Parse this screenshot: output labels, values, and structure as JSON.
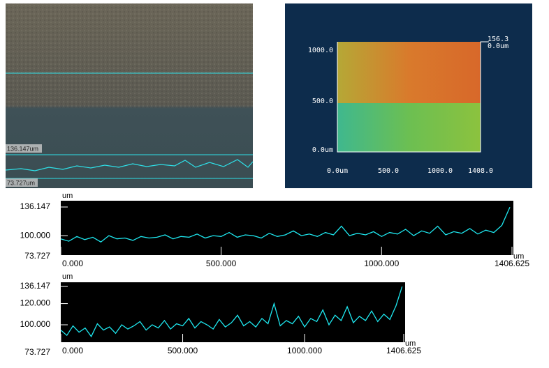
{
  "micrograph": {
    "upper_label": "136.147um",
    "lower_label": "73.727um"
  },
  "height_map": {
    "scale_max": "156.3",
    "scale_min": "0.0um",
    "y_tick_labels": [
      "1000.0",
      "500.0",
      "0.0um"
    ],
    "x_tick_labels": [
      "0.0um",
      "500.0",
      "1000.0",
      "1408.0"
    ]
  },
  "chart_data": [
    {
      "type": "line",
      "y_label": "um",
      "x_label": "um",
      "xlim": [
        0,
        1406.625
      ],
      "xticks": [
        {
          "value": 0,
          "label": "0.000"
        },
        {
          "value": 500,
          "label": "500.000"
        },
        {
          "value": 1000,
          "label": "1000.000"
        },
        1406.625
      ],
      "ylim": [
        73.727,
        136.147
      ],
      "yticks": [
        136.147,
        {
          "value": 100,
          "label": "100.000"
        },
        73.727
      ],
      "x": [
        0,
        25,
        50,
        75,
        100,
        125,
        150,
        175,
        200,
        225,
        250,
        275,
        300,
        325,
        350,
        375,
        400,
        425,
        450,
        475,
        500,
        525,
        550,
        575,
        600,
        625,
        650,
        675,
        700,
        725,
        750,
        775,
        800,
        825,
        850,
        875,
        900,
        925,
        950,
        975,
        1000,
        1025,
        1050,
        1075,
        1100,
        1125,
        1150,
        1175,
        1200,
        1225,
        1250,
        1275,
        1300,
        1325,
        1350,
        1375,
        1400
      ],
      "series": [
        {
          "color": "#1ee8f0",
          "values": [
            96,
            93,
            99,
            95,
            98,
            92,
            100,
            96,
            97,
            94,
            99,
            97,
            98,
            101,
            96,
            99,
            98,
            102,
            97,
            100,
            99,
            104,
            98,
            101,
            100,
            97,
            103,
            99,
            101,
            106,
            100,
            102,
            99,
            104,
            101,
            112,
            100,
            103,
            101,
            105,
            99,
            104,
            102,
            108,
            100,
            106,
            103,
            112,
            101,
            105,
            103,
            109,
            102,
            107,
            104,
            113,
            136
          ]
        }
      ]
    },
    {
      "type": "line",
      "y_label": "um",
      "x_label": "um",
      "xlim": [
        0,
        1406.625
      ],
      "xticks": [
        {
          "value": 0,
          "label": "0.000"
        },
        {
          "value": 500,
          "label": "500.000"
        },
        {
          "value": 1000,
          "label": "1000.000"
        },
        1406.625
      ],
      "ylim": [
        73.727,
        136.147
      ],
      "yticks": [
        136.147,
        {
          "value": 120,
          "label": "120.000"
        },
        {
          "value": 100,
          "label": "100.000"
        },
        73.727
      ],
      "x": [
        0,
        25,
        50,
        75,
        100,
        125,
        150,
        175,
        200,
        225,
        250,
        275,
        300,
        325,
        350,
        375,
        400,
        425,
        450,
        475,
        500,
        525,
        550,
        575,
        600,
        625,
        650,
        675,
        700,
        725,
        750,
        775,
        800,
        825,
        850,
        875,
        900,
        925,
        950,
        975,
        1000,
        1025,
        1050,
        1075,
        1100,
        1125,
        1150,
        1175,
        1200,
        1225,
        1250,
        1275,
        1300,
        1325,
        1350,
        1375,
        1400
      ],
      "series": [
        {
          "color": "#1ee8f0",
          "values": [
            95,
            90,
            99,
            93,
            97,
            89,
            101,
            95,
            98,
            92,
            100,
            96,
            99,
            103,
            95,
            100,
            97,
            104,
            96,
            101,
            99,
            106,
            97,
            103,
            100,
            96,
            105,
            98,
            102,
            109,
            99,
            103,
            98,
            106,
            101,
            120,
            99,
            104,
            101,
            108,
            98,
            106,
            103,
            114,
            100,
            109,
            104,
            117,
            102,
            108,
            104,
            113,
            103,
            110,
            105,
            118,
            136
          ]
        }
      ]
    }
  ]
}
